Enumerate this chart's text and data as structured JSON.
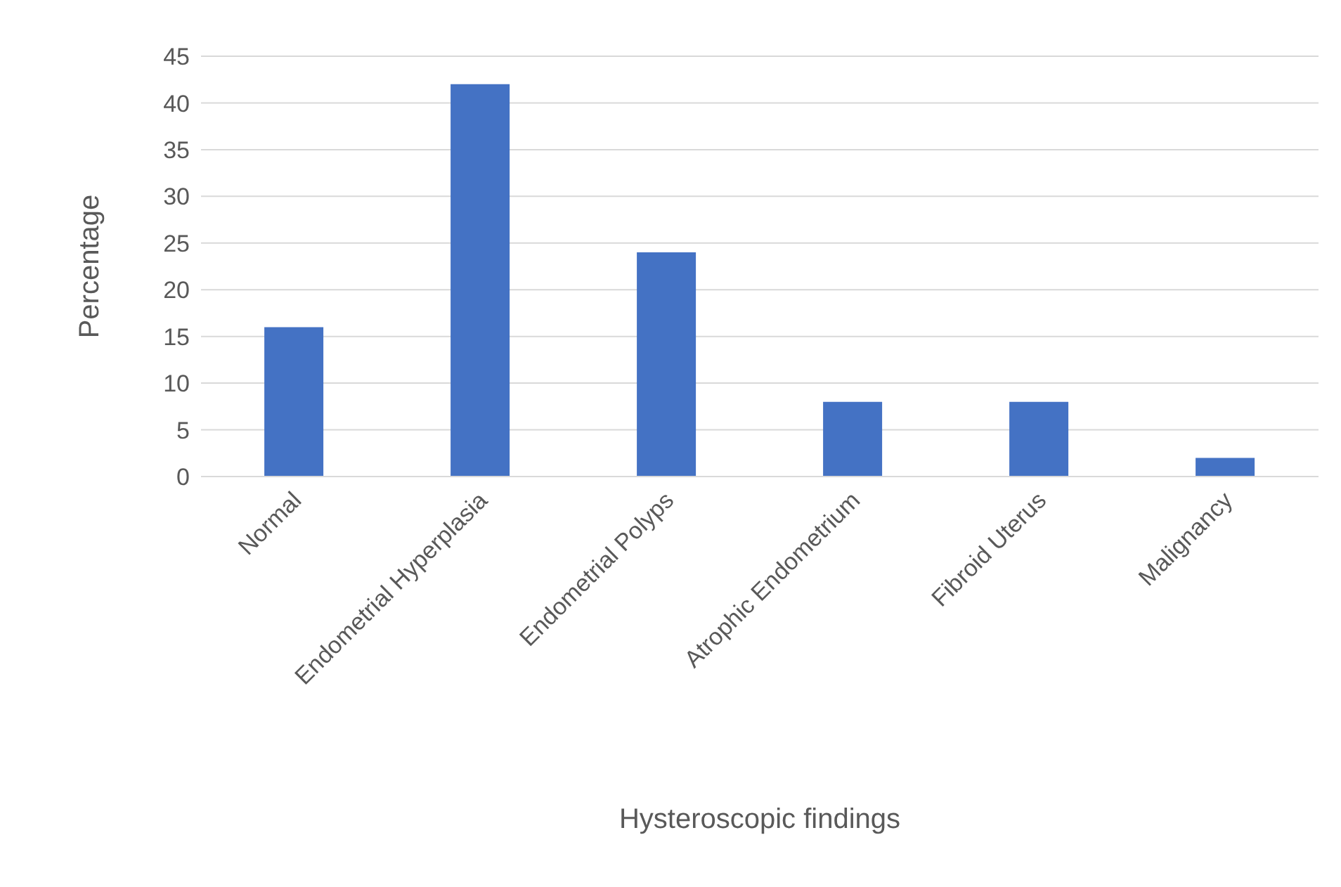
{
  "chart_data": {
    "type": "bar",
    "xlabel": "Hysteroscopic findings",
    "ylabel": "Percentage",
    "categories": [
      "Normal",
      "Endometrial Hyperplasia",
      "Endometrial Polyps",
      "Atrophic Endometrium",
      "Fibroid Uterus",
      "Malignancy"
    ],
    "values": [
      16,
      42,
      24,
      8,
      8,
      2
    ],
    "color": "#4472c4",
    "ylim": [
      0,
      45
    ],
    "yticks": [
      0,
      5,
      10,
      15,
      20,
      25,
      30,
      35,
      40,
      45
    ],
    "grid": "y"
  }
}
